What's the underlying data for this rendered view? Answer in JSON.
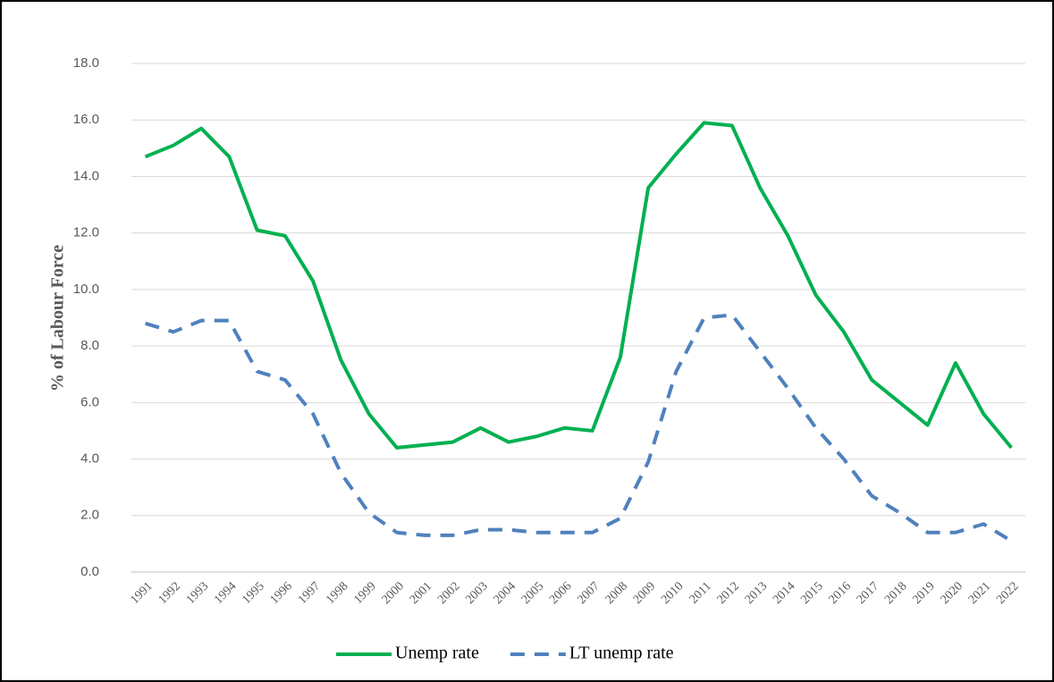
{
  "chart_data": {
    "type": "line",
    "y_label": "% of Labour Force",
    "categories": [
      "1991",
      "1992",
      "1993",
      "1994",
      "1995",
      "1996",
      "1997",
      "1998",
      "1999",
      "2000",
      "2001",
      "2002",
      "2003",
      "2004",
      "2005",
      "2006",
      "2007",
      "2008",
      "2009",
      "2010",
      "2011",
      "2012",
      "2013",
      "2014",
      "2015",
      "2016",
      "2017",
      "2018",
      "2019",
      "2020",
      "2021",
      "2022"
    ],
    "series": [
      {
        "name": "Unemp rate",
        "color": "#00b050",
        "dash": false,
        "values": [
          14.7,
          15.1,
          15.7,
          14.7,
          12.1,
          11.9,
          10.3,
          7.5,
          5.6,
          4.4,
          4.5,
          4.6,
          5.1,
          4.6,
          4.8,
          5.1,
          5.0,
          7.6,
          13.6,
          14.8,
          15.9,
          15.8,
          13.6,
          11.9,
          9.8,
          8.5,
          6.8,
          6.0,
          5.2,
          7.4,
          5.6,
          4.4
        ]
      },
      {
        "name": "LT unemp rate",
        "color": "#4f81bd",
        "dash": true,
        "values": [
          8.8,
          8.5,
          8.9,
          8.9,
          7.1,
          6.8,
          5.6,
          3.5,
          2.1,
          1.4,
          1.3,
          1.3,
          1.5,
          1.5,
          1.4,
          1.4,
          1.4,
          1.9,
          3.9,
          7.1,
          9.0,
          9.1,
          7.8,
          6.5,
          5.1,
          4.0,
          2.7,
          2.1,
          1.4,
          1.4,
          1.7,
          1.1
        ]
      }
    ],
    "ylim": [
      0,
      18
    ],
    "yticks": [
      {
        "value": 0,
        "label": "0.0"
      },
      {
        "value": 2,
        "label": "2.0"
      },
      {
        "value": 4,
        "label": "4.0"
      },
      {
        "value": 6,
        "label": "6.0"
      },
      {
        "value": 8,
        "label": "8.0"
      },
      {
        "value": 10,
        "label": "10.0"
      },
      {
        "value": 12,
        "label": "12.0"
      },
      {
        "value": 14,
        "label": "14.0"
      },
      {
        "value": 16,
        "label": "16.0"
      },
      {
        "value": 18,
        "label": "18.0"
      }
    ],
    "grid": true,
    "legend": "bottom"
  }
}
